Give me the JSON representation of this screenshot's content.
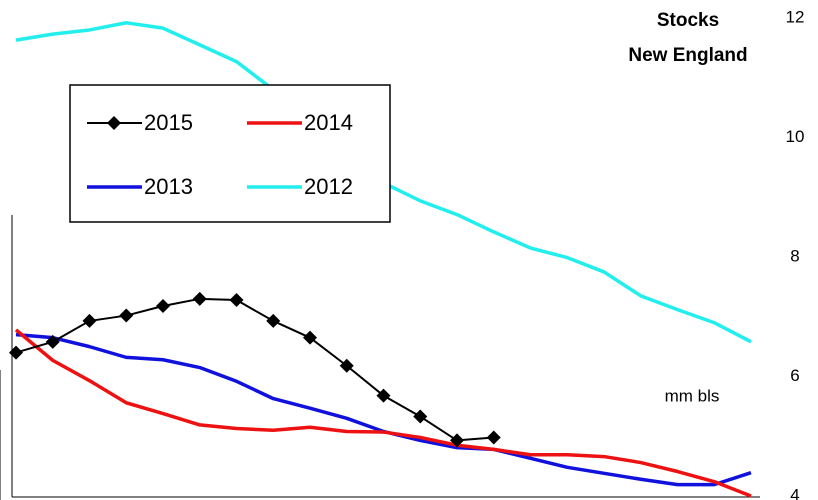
{
  "chart_data": {
    "type": "line",
    "title": "Stocks",
    "subtitle": "New England",
    "annotation": "mm bls",
    "categories": [
      null,
      null,
      null,
      null,
      null,
      null,
      null,
      null,
      null,
      null,
      null,
      null,
      null,
      null,
      null,
      null,
      null,
      null,
      null,
      null,
      null
    ],
    "series": [
      {
        "name": "2015",
        "color": "#000000",
        "marker": "diamond",
        "values": [
          6.4,
          6.58,
          6.93,
          7.02,
          7.18,
          7.3,
          7.28,
          6.93,
          6.65,
          6.18,
          5.68,
          5.33,
          4.93,
          4.98,
          null,
          null,
          null,
          null,
          null,
          null,
          null
        ]
      },
      {
        "name": "2014",
        "color": "#ee1111",
        "values": [
          6.78,
          6.27,
          5.93,
          5.56,
          5.38,
          5.19,
          5.13,
          5.1,
          5.15,
          5.08,
          5.07,
          4.98,
          4.85,
          4.78,
          4.69,
          4.69,
          4.66,
          4.56,
          4.41,
          4.24,
          4.0
        ]
      },
      {
        "name": "2013",
        "color": "#1111dd",
        "values": [
          6.7,
          6.65,
          6.5,
          6.32,
          6.28,
          6.15,
          5.92,
          5.63,
          5.47,
          5.3,
          5.08,
          4.93,
          4.81,
          4.78,
          4.63,
          4.48,
          4.38,
          4.28,
          4.19,
          4.19,
          4.39
        ]
      },
      {
        "name": "2012",
        "color": "#22eeee",
        "values": [
          11.63,
          11.73,
          11.8,
          11.92,
          11.83,
          11.55,
          11.27,
          10.8,
          10.2,
          9.7,
          9.24,
          8.94,
          8.71,
          8.42,
          8.15,
          7.99,
          7.75,
          7.35,
          7.12,
          6.9,
          6.58
        ]
      }
    ],
    "ylim": [
      4,
      12
    ],
    "yticks": [
      4,
      6,
      8,
      10,
      12
    ],
    "y_axis_side": "right",
    "legend": "top-left"
  }
}
